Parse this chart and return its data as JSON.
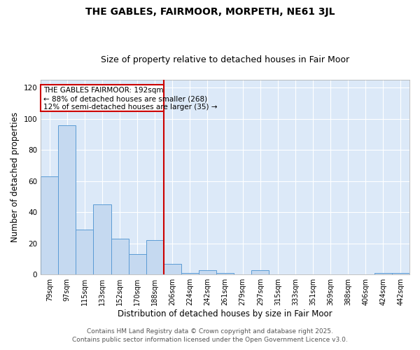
{
  "title": "THE GABLES, FAIRMOOR, MORPETH, NE61 3JL",
  "subtitle": "Size of property relative to detached houses in Fair Moor",
  "xlabel": "Distribution of detached houses by size in Fair Moor",
  "ylabel": "Number of detached properties",
  "categories": [
    "79sqm",
    "97sqm",
    "115sqm",
    "133sqm",
    "152sqm",
    "170sqm",
    "188sqm",
    "206sqm",
    "224sqm",
    "242sqm",
    "261sqm",
    "279sqm",
    "297sqm",
    "315sqm",
    "333sqm",
    "351sqm",
    "369sqm",
    "388sqm",
    "406sqm",
    "424sqm",
    "442sqm"
  ],
  "values": [
    63,
    96,
    29,
    45,
    23,
    13,
    22,
    7,
    1,
    3,
    1,
    0,
    3,
    0,
    0,
    0,
    0,
    0,
    0,
    1,
    1
  ],
  "bar_color": "#c5d9f0",
  "bar_edge_color": "#5b9bd5",
  "vline_color": "#cc0000",
  "annotation_line1": "THE GABLES FAIRMOOR: 192sqm",
  "annotation_line2": "← 88% of detached houses are smaller (268)",
  "annotation_line3": "12% of semi-detached houses are larger (35) →",
  "ylim": [
    0,
    125
  ],
  "yticks": [
    0,
    20,
    40,
    60,
    80,
    100,
    120
  ],
  "background_color": "#dce9f8",
  "footer_line1": "Contains HM Land Registry data © Crown copyright and database right 2025.",
  "footer_line2": "Contains public sector information licensed under the Open Government Licence v3.0.",
  "title_fontsize": 10,
  "subtitle_fontsize": 9,
  "tick_fontsize": 7,
  "axis_label_fontsize": 8.5,
  "annotation_fontsize": 7.5,
  "footer_fontsize": 6.5
}
